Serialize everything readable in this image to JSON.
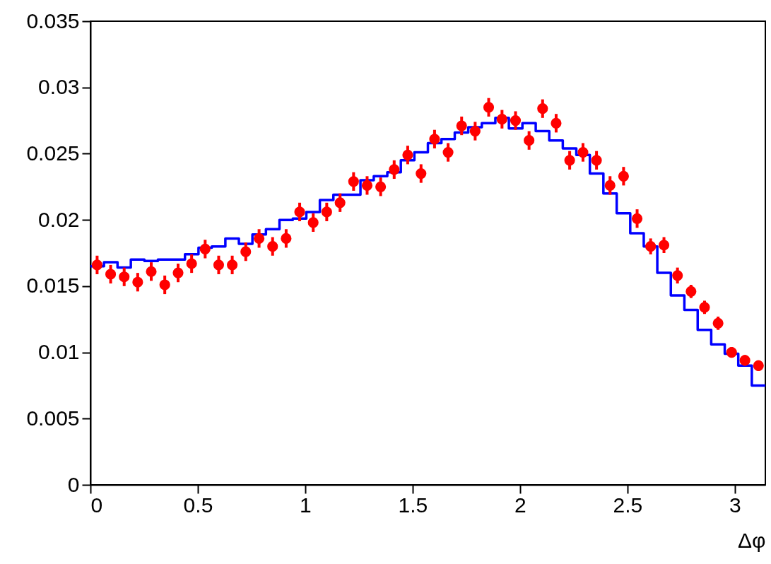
{
  "chart_data": {
    "type": "scatter",
    "xlabel": "Δφ",
    "xlim": [
      0,
      3.142
    ],
    "xticks": [
      0,
      0.5,
      1,
      1.5,
      2,
      2.5,
      3
    ],
    "ylim": [
      0,
      0.035
    ],
    "yticks": [
      0,
      0.005,
      0.01,
      0.015,
      0.02,
      0.025,
      0.03,
      0.035
    ],
    "marker": "circle",
    "series": [
      {
        "type": "histogram",
        "color": "#0000ff",
        "bins": [
          0,
          0.063,
          0.126,
          0.188,
          0.251,
          0.314,
          0.377,
          0.44,
          0.503,
          0.565,
          0.628,
          0.691,
          0.754,
          0.817,
          0.88,
          0.942,
          1.005,
          1.068,
          1.131,
          1.194,
          1.257,
          1.319,
          1.382,
          1.445,
          1.508,
          1.571,
          1.634,
          1.696,
          1.759,
          1.822,
          1.885,
          1.948,
          2.011,
          2.073,
          2.136,
          2.199,
          2.262,
          2.325,
          2.388,
          2.45,
          2.513,
          2.576,
          2.639,
          2.702,
          2.765,
          2.827,
          2.89,
          2.953,
          3.016,
          3.079,
          3.142
        ],
        "values": [
          0.0165,
          0.0168,
          0.0164,
          0.017,
          0.0169,
          0.017,
          0.017,
          0.0174,
          0.0179,
          0.018,
          0.0186,
          0.0182,
          0.0189,
          0.0193,
          0.02,
          0.0201,
          0.0206,
          0.0215,
          0.0219,
          0.0219,
          0.023,
          0.0233,
          0.0236,
          0.0245,
          0.0251,
          0.0258,
          0.0261,
          0.0266,
          0.027,
          0.0273,
          0.0277,
          0.0269,
          0.0273,
          0.0267,
          0.026,
          0.0254,
          0.0249,
          0.0235,
          0.022,
          0.0205,
          0.019,
          0.018,
          0.016,
          0.0143,
          0.0132,
          0.0117,
          0.0106,
          0.0099,
          0.009,
          0.0075
        ]
      },
      {
        "color": "#ff0000",
        "x": [
          0.031,
          0.094,
          0.157,
          0.22,
          0.283,
          0.346,
          0.408,
          0.471,
          0.534,
          0.597,
          0.66,
          0.723,
          0.785,
          0.848,
          0.911,
          0.974,
          1.037,
          1.1,
          1.162,
          1.225,
          1.288,
          1.351,
          1.414,
          1.477,
          1.539,
          1.602,
          1.665,
          1.728,
          1.791,
          1.854,
          1.916,
          1.979,
          2.042,
          2.105,
          2.168,
          2.231,
          2.293,
          2.356,
          2.419,
          2.482,
          2.545,
          2.608,
          2.67,
          2.733,
          2.796,
          2.859,
          2.922,
          2.985,
          3.047,
          3.11
        ],
        "values": [
          0.0166,
          0.0159,
          0.0157,
          0.0153,
          0.0161,
          0.0151,
          0.016,
          0.0167,
          0.0178,
          0.0166,
          0.0166,
          0.0176,
          0.0186,
          0.018,
          0.0186,
          0.0206,
          0.0198,
          0.0206,
          0.0213,
          0.0229,
          0.0226,
          0.0225,
          0.0238,
          0.0249,
          0.0235,
          0.0261,
          0.0251,
          0.0271,
          0.0267,
          0.0285,
          0.0276,
          0.0275,
          0.026,
          0.0284,
          0.0273,
          0.0245,
          0.0251,
          0.0245,
          0.0226,
          0.0233,
          0.0201,
          0.018,
          0.0181,
          0.0158,
          0.0146,
          0.0134,
          0.0122,
          0.01,
          0.0094,
          0.009
        ],
        "errors": [
          0.0007,
          0.0007,
          0.0007,
          0.0007,
          0.0007,
          0.0007,
          0.0007,
          0.0007,
          0.0007,
          0.0007,
          0.0007,
          0.0007,
          0.0007,
          0.0007,
          0.0007,
          0.0007,
          0.0007,
          0.0007,
          0.0007,
          0.0007,
          0.0007,
          0.0007,
          0.0007,
          0.0007,
          0.0007,
          0.0007,
          0.0007,
          0.0007,
          0.0007,
          0.0007,
          0.0007,
          0.0007,
          0.0007,
          0.0007,
          0.0007,
          0.0007,
          0.0007,
          0.0007,
          0.0007,
          0.0007,
          0.0007,
          0.0006,
          0.0006,
          0.0006,
          0.0005,
          0.0005,
          0.0005,
          0.0004,
          0.0004,
          0.0004
        ]
      }
    ]
  }
}
